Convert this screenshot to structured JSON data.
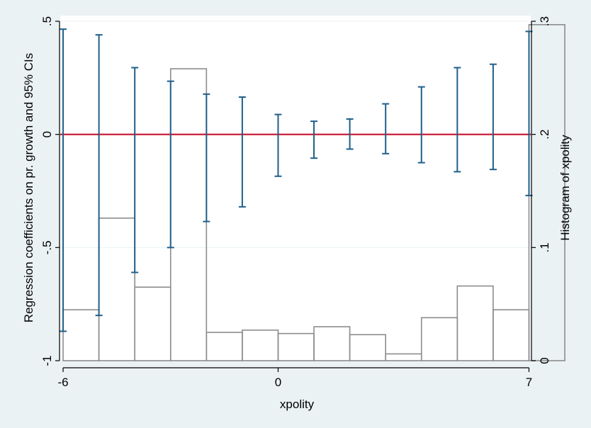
{
  "chart_data": {
    "type": "bar",
    "background_color": "#eaf2f3",
    "plot_background_color": "#ffffff",
    "grid": true,
    "legend": "none",
    "xlabel": "xpolity",
    "x_ticks": [
      {
        "value": -6,
        "label": "-6"
      },
      {
        "value": 0,
        "label": "0"
      },
      {
        "value": 7,
        "label": "7"
      }
    ],
    "xlim": [
      -6.08,
      7.05
    ],
    "y_left": {
      "label": "Regression coefficients on pr. growth and 95% CIs",
      "lim": [
        -1,
        0.5
      ],
      "ticks": [
        {
          "value": 0.5,
          "label": ".5"
        },
        {
          "value": 0,
          "label": "0"
        },
        {
          "value": -0.5,
          "label": "-.5"
        },
        {
          "value": -1,
          "label": "-1"
        }
      ]
    },
    "y_right": {
      "label": "Histogram of xpolity",
      "lim": [
        0,
        0.3
      ],
      "ticks": [
        {
          "value": 0.3,
          "label": ".3"
        },
        {
          "value": 0.2,
          "label": ".2"
        },
        {
          "value": 0.1,
          "label": ".1"
        },
        {
          "value": 0,
          "label": "0"
        }
      ]
    },
    "reference_line": {
      "y": 0,
      "color": "#c8102e"
    },
    "histogram": {
      "color": "#8c8c8c",
      "bins": [
        {
          "x0": -6,
          "x1": -5,
          "density": 0.045
        },
        {
          "x0": -5,
          "x1": -4,
          "density": 0.126
        },
        {
          "x0": -4,
          "x1": -3,
          "density": 0.065
        },
        {
          "x0": -3,
          "x1": -2,
          "density": 0.258
        },
        {
          "x0": -2,
          "x1": -1,
          "density": 0.025
        },
        {
          "x0": -1,
          "x1": 0,
          "density": 0.027
        },
        {
          "x0": 0,
          "x1": 1,
          "density": 0.024
        },
        {
          "x0": 1,
          "x1": 2,
          "density": 0.03
        },
        {
          "x0": 2,
          "x1": 3,
          "density": 0.023
        },
        {
          "x0": 3,
          "x1": 4,
          "density": 0.006
        },
        {
          "x0": 4,
          "x1": 5,
          "density": 0.038
        },
        {
          "x0": 5,
          "x1": 6,
          "density": 0.066
        },
        {
          "x0": 6,
          "x1": 7,
          "density": 0.045
        },
        {
          "x0": 7,
          "x1": 8,
          "density": 0.297
        }
      ]
    },
    "coefficients": {
      "color": "#1f5f8b",
      "points": [
        {
          "x": -6,
          "lo": -0.87,
          "hi": 0.465
        },
        {
          "x": -5,
          "lo": -0.8,
          "hi": 0.44
        },
        {
          "x": -4,
          "lo": -0.61,
          "hi": 0.295
        },
        {
          "x": -3,
          "lo": -0.5,
          "hi": 0.235
        },
        {
          "x": -2,
          "lo": -0.385,
          "hi": 0.178
        },
        {
          "x": -1,
          "lo": -0.32,
          "hi": 0.165
        },
        {
          "x": 0,
          "lo": -0.185,
          "hi": 0.088
        },
        {
          "x": 1,
          "lo": -0.105,
          "hi": 0.058
        },
        {
          "x": 2,
          "lo": -0.065,
          "hi": 0.068
        },
        {
          "x": 3,
          "lo": -0.085,
          "hi": 0.135
        },
        {
          "x": 4,
          "lo": -0.125,
          "hi": 0.21
        },
        {
          "x": 5,
          "lo": -0.165,
          "hi": 0.295
        },
        {
          "x": 6,
          "lo": -0.155,
          "hi": 0.31
        },
        {
          "x": 7,
          "lo": -0.27,
          "hi": 0.455
        }
      ]
    }
  }
}
